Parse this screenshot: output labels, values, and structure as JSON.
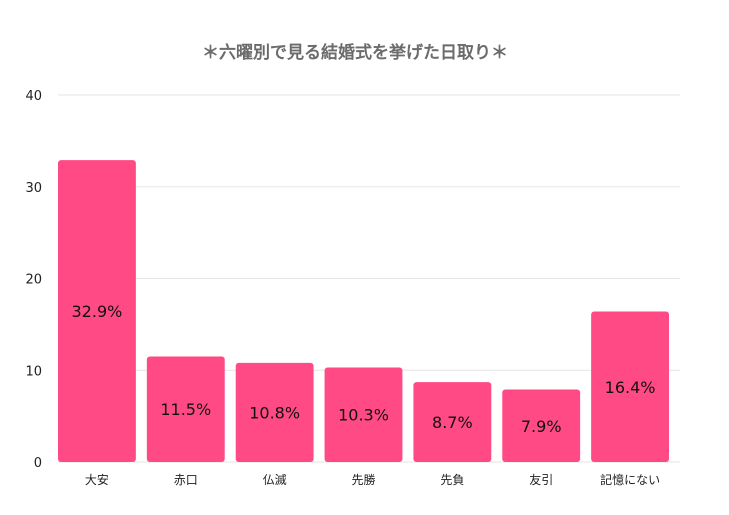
{
  "chart_data": {
    "type": "bar",
    "title": "＊六曜別で見る結婚式を挙げた日取り＊",
    "categories": [
      "大安",
      "赤口",
      "仏滅",
      "先勝",
      "先負",
      "友引",
      "記憶にない"
    ],
    "values": [
      32.9,
      11.5,
      10.8,
      10.3,
      8.7,
      7.9,
      16.4
    ],
    "data_labels": [
      "32.9%",
      "11.5%",
      "10.8%",
      "10.3%",
      "8.7%",
      "7.9%",
      "16.4%"
    ],
    "yticks": [
      0,
      10,
      20,
      30,
      40
    ],
    "ylim": [
      0,
      40
    ],
    "xlabel": "",
    "ylabel": "",
    "grid": true,
    "legend": "none",
    "bar_color": "#ff4a85"
  }
}
